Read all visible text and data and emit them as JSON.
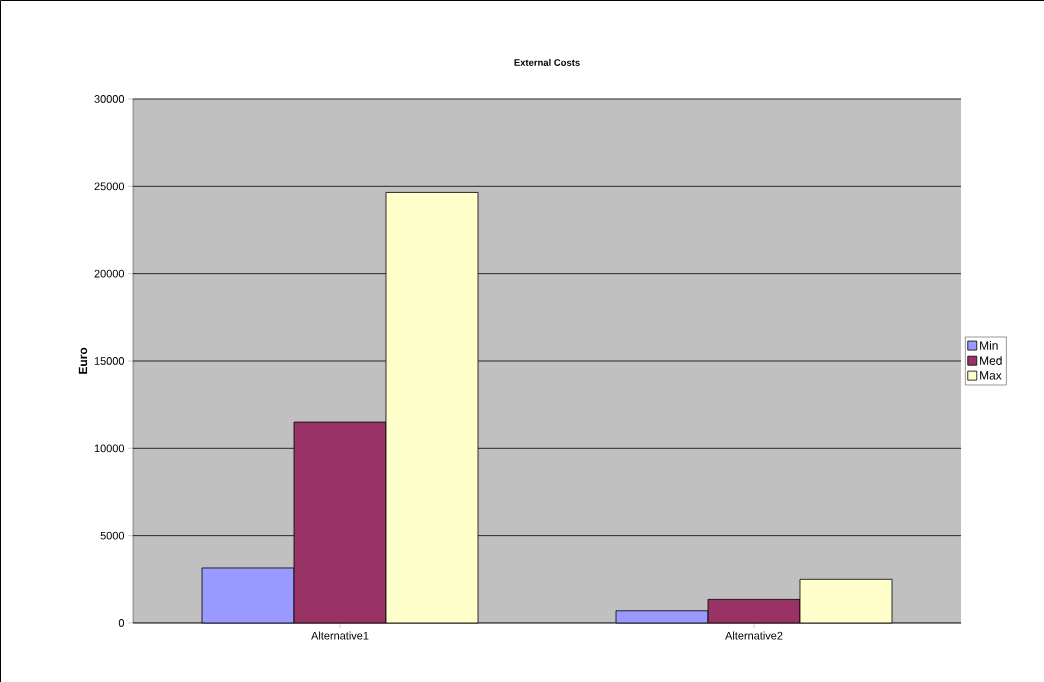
{
  "chart_data": {
    "type": "bar",
    "title": "External Costs",
    "ylabel": "Euro",
    "categories": [
      "Alternative1",
      "Alternative2"
    ],
    "series": [
      {
        "name": "Min",
        "color": "#9999ff",
        "values": [
          3150,
          700
        ]
      },
      {
        "name": "Med",
        "color": "#993366",
        "values": [
          11500,
          1350
        ]
      },
      {
        "name": "Max",
        "color": "#ffffcc",
        "values": [
          24650,
          2500
        ]
      }
    ],
    "ylim": [
      0,
      30000
    ],
    "yticks": [
      0,
      5000,
      10000,
      15000,
      20000,
      25000,
      30000
    ],
    "grid": "y",
    "legend": "right"
  }
}
